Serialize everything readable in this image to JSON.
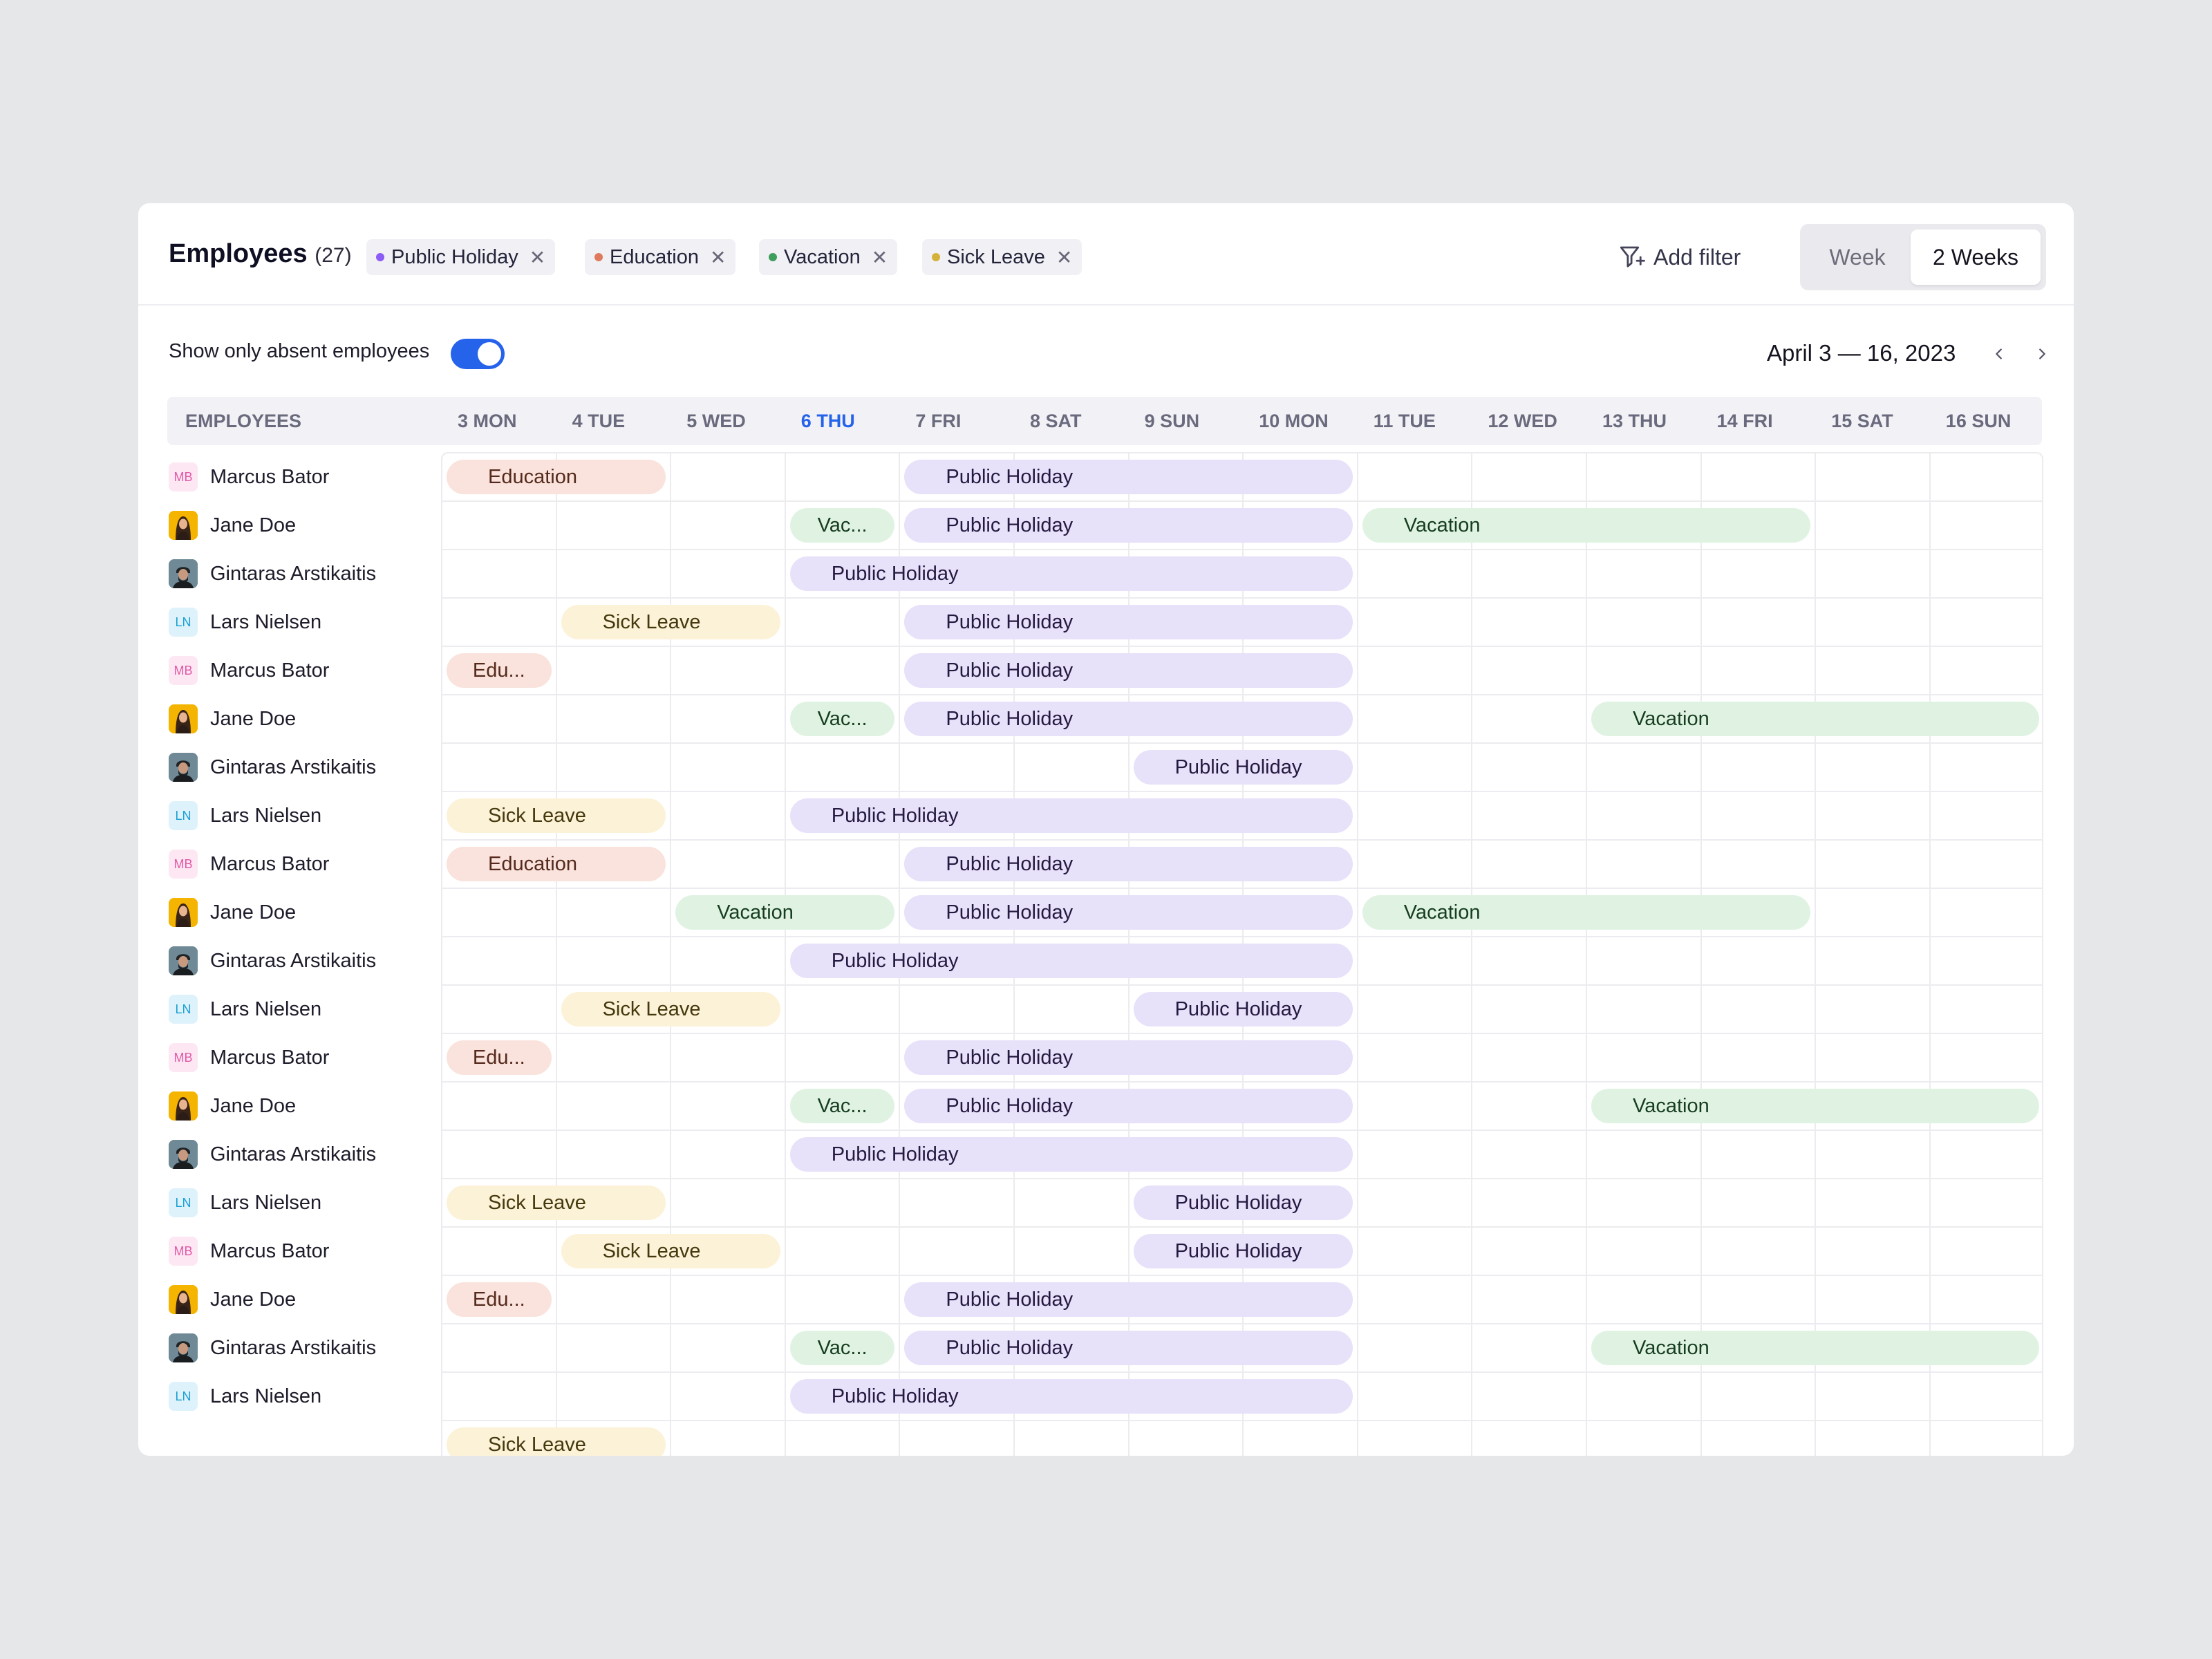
{
  "header": {
    "title": "Employees",
    "count": "(27)",
    "filters": [
      {
        "label": "Public Holiday",
        "color": "#8b5cf6"
      },
      {
        "label": "Education",
        "color": "#e07a5f"
      },
      {
        "label": "Vacation",
        "color": "#3f9d5d"
      },
      {
        "label": "Sick Leave",
        "color": "#d4b23a"
      }
    ],
    "add_filter": "Add filter",
    "view_options": [
      "Week",
      "2 Weeks"
    ],
    "active_view": "2 Weeks"
  },
  "controls": {
    "toggle_label": "Show only absent employees",
    "toggle_on": true,
    "date_range": "April 3 — 16, 2023"
  },
  "table": {
    "employees_header": "EMPLOYEES",
    "today_index": 3,
    "days": [
      "3 MON",
      "4 TUE",
      "5 WED",
      "6 THU",
      "7 FRI",
      "8 SAT",
      "9 SUN",
      "10 MON",
      "11 TUE",
      "12 WED",
      "13 THU",
      "14 FRI",
      "15 SAT",
      "16 SUN"
    ],
    "leave_types": {
      "education": "Education",
      "holiday": "Public Holiday",
      "vacation": "Vacation",
      "sick": "Sick Leave"
    },
    "rows": [
      {
        "name": "Marcus Bator",
        "initials": "MB",
        "avatar": "mb",
        "absences": [
          {
            "type": "education",
            "start": 0,
            "end": 1,
            "label": "Education"
          },
          {
            "type": "holiday",
            "start": 4,
            "end": 7,
            "label": "Public Holiday"
          }
        ]
      },
      {
        "name": "Jane Doe",
        "initials": "",
        "avatar": "jd",
        "absences": [
          {
            "type": "vacation",
            "start": 3,
            "end": 3,
            "label": "Vac..."
          },
          {
            "type": "holiday",
            "start": 4,
            "end": 7,
            "label": "Public Holiday"
          },
          {
            "type": "vacation",
            "start": 8,
            "end": 11,
            "label": "Vacation"
          }
        ]
      },
      {
        "name": "Gintaras Arstikaitis",
        "initials": "",
        "avatar": "ga",
        "absences": [
          {
            "type": "holiday",
            "start": 3,
            "end": 7,
            "label": "Public Holiday"
          }
        ]
      },
      {
        "name": "Lars Nielsen",
        "initials": "LN",
        "avatar": "ln",
        "absences": [
          {
            "type": "sick",
            "start": 1,
            "end": 2,
            "label": "Sick Leave"
          },
          {
            "type": "holiday",
            "start": 4,
            "end": 7,
            "label": "Public Holiday"
          }
        ]
      },
      {
        "name": "Marcus Bator",
        "initials": "MB",
        "avatar": "mb",
        "absences": [
          {
            "type": "education",
            "start": 0,
            "end": 0,
            "label": "Edu..."
          },
          {
            "type": "holiday",
            "start": 4,
            "end": 7,
            "label": "Public Holiday"
          }
        ]
      },
      {
        "name": "Jane Doe",
        "initials": "",
        "avatar": "jd",
        "absences": [
          {
            "type": "vacation",
            "start": 3,
            "end": 3,
            "label": "Vac..."
          },
          {
            "type": "holiday",
            "start": 4,
            "end": 7,
            "label": "Public Holiday"
          },
          {
            "type": "vacation",
            "start": 10,
            "end": 13,
            "label": "Vacation"
          }
        ]
      },
      {
        "name": "Gintaras Arstikaitis",
        "initials": "",
        "avatar": "ga",
        "absences": [
          {
            "type": "holiday",
            "start": 6,
            "end": 7,
            "label": "Public Holiday"
          }
        ]
      },
      {
        "name": "Lars Nielsen",
        "initials": "LN",
        "avatar": "ln",
        "absences": [
          {
            "type": "sick",
            "start": 0,
            "end": 1,
            "label": "Sick Leave"
          },
          {
            "type": "holiday",
            "start": 3,
            "end": 7,
            "label": "Public Holiday"
          }
        ]
      },
      {
        "name": "Marcus Bator",
        "initials": "MB",
        "avatar": "mb",
        "absences": [
          {
            "type": "education",
            "start": 0,
            "end": 1,
            "label": "Education"
          },
          {
            "type": "holiday",
            "start": 4,
            "end": 7,
            "label": "Public Holiday"
          }
        ]
      },
      {
        "name": "Jane Doe",
        "initials": "",
        "avatar": "jd",
        "absences": [
          {
            "type": "vacation",
            "start": 2,
            "end": 3,
            "label": "Vacation"
          },
          {
            "type": "holiday",
            "start": 4,
            "end": 7,
            "label": "Public Holiday"
          },
          {
            "type": "vacation",
            "start": 8,
            "end": 11,
            "label": "Vacation"
          }
        ]
      },
      {
        "name": "Gintaras Arstikaitis",
        "initials": "",
        "avatar": "ga",
        "absences": [
          {
            "type": "holiday",
            "start": 3,
            "end": 7,
            "label": "Public Holiday"
          }
        ]
      },
      {
        "name": "Lars Nielsen",
        "initials": "LN",
        "avatar": "ln",
        "absences": [
          {
            "type": "sick",
            "start": 1,
            "end": 2,
            "label": "Sick Leave"
          },
          {
            "type": "holiday",
            "start": 6,
            "end": 7,
            "label": "Public Holiday"
          }
        ]
      },
      {
        "name": "Marcus Bator",
        "initials": "MB",
        "avatar": "mb",
        "absences": [
          {
            "type": "education",
            "start": 0,
            "end": 0,
            "label": "Edu..."
          },
          {
            "type": "holiday",
            "start": 4,
            "end": 7,
            "label": "Public Holiday"
          }
        ]
      },
      {
        "name": "Jane Doe",
        "initials": "",
        "avatar": "jd",
        "absences": [
          {
            "type": "vacation",
            "start": 3,
            "end": 3,
            "label": "Vac..."
          },
          {
            "type": "holiday",
            "start": 4,
            "end": 7,
            "label": "Public Holiday"
          },
          {
            "type": "vacation",
            "start": 10,
            "end": 13,
            "label": "Vacation"
          }
        ]
      },
      {
        "name": "Gintaras Arstikaitis",
        "initials": "",
        "avatar": "ga",
        "absences": [
          {
            "type": "holiday",
            "start": 3,
            "end": 7,
            "label": "Public Holiday"
          }
        ]
      },
      {
        "name": "Lars Nielsen",
        "initials": "LN",
        "avatar": "ln",
        "absences": [
          {
            "type": "sick",
            "start": 0,
            "end": 1,
            "label": "Sick Leave"
          },
          {
            "type": "holiday",
            "start": 6,
            "end": 7,
            "label": "Public Holiday"
          }
        ]
      },
      {
        "name": "Marcus Bator",
        "initials": "MB",
        "avatar": "mb",
        "absences": [
          {
            "type": "sick",
            "start": 1,
            "end": 2,
            "label": "Sick Leave"
          },
          {
            "type": "holiday",
            "start": 6,
            "end": 7,
            "label": "Public Holiday"
          }
        ]
      },
      {
        "name": "Jane Doe",
        "initials": "",
        "avatar": "jd",
        "absences": [
          {
            "type": "education",
            "start": 0,
            "end": 0,
            "label": "Edu..."
          },
          {
            "type": "holiday",
            "start": 4,
            "end": 7,
            "label": "Public Holiday"
          }
        ]
      },
      {
        "name": "Gintaras Arstikaitis",
        "initials": "",
        "avatar": "ga",
        "absences": [
          {
            "type": "vacation",
            "start": 3,
            "end": 3,
            "label": "Vac..."
          },
          {
            "type": "holiday",
            "start": 4,
            "end": 7,
            "label": "Public Holiday"
          },
          {
            "type": "vacation",
            "start": 10,
            "end": 13,
            "label": "Vacation"
          }
        ]
      },
      {
        "name": "Lars Nielsen",
        "initials": "LN",
        "avatar": "ln",
        "absences": [
          {
            "type": "holiday",
            "start": 3,
            "end": 7,
            "label": "Public Holiday"
          }
        ]
      },
      {
        "name": "",
        "initials": "",
        "avatar": "",
        "absences": [
          {
            "type": "sick",
            "start": 0,
            "end": 1,
            "label": "Sick Leave"
          }
        ]
      }
    ]
  }
}
